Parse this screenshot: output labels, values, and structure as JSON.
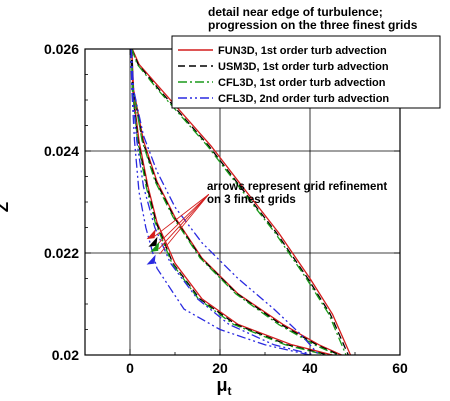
{
  "chart_data": {
    "type": "line",
    "title_lines": [
      "detail near edge of turbulence;",
      "progression on the three finest grids"
    ],
    "xlabel": "μ",
    "xlabel_sub": "t",
    "ylabel": "Z",
    "xlim": [
      -10,
      60
    ],
    "ylim": [
      0.02,
      0.026
    ],
    "x_ticks": [
      "0",
      "20",
      "40",
      "60"
    ],
    "y_ticks": [
      "0.02",
      "0.022",
      "0.024",
      "0.026"
    ],
    "grid": true,
    "legend_position": "top-right",
    "colors": {
      "fun3d": "#d41d1d",
      "usm3d": "#000000",
      "cfl3d_1st": "#1a9a1a",
      "cfl3d_2nd": "#2a2ae0",
      "axis": "#000000",
      "grid": "#000000"
    },
    "series": [
      {
        "name": "FUN3D, 1st order turb advection",
        "style": "solid",
        "color_key": "fun3d",
        "curves": [
          [
            [
              0.4,
              0.026
            ],
            [
              0.6,
              0.0252
            ],
            [
              2.0,
              0.0242
            ],
            [
              4.0,
              0.0233
            ],
            [
              6.0,
              0.0226
            ],
            [
              10.0,
              0.0218
            ],
            [
              16.0,
              0.0211
            ],
            [
              24.0,
              0.0206
            ],
            [
              36.0,
              0.0202
            ],
            [
              45.0,
              0.02
            ]
          ],
          [
            [
              0.4,
              0.026
            ],
            [
              0.8,
              0.0252
            ],
            [
              3.0,
              0.0242
            ],
            [
              6.0,
              0.0234
            ],
            [
              10.0,
              0.0227
            ],
            [
              16.0,
              0.0219
            ],
            [
              24.0,
              0.0212
            ],
            [
              34.0,
              0.0206
            ],
            [
              42.0,
              0.0202
            ],
            [
              47.0,
              0.02
            ]
          ],
          [
            [
              0.5,
              0.026
            ],
            [
              2.0,
              0.0257
            ],
            [
              7.0,
              0.0252
            ],
            [
              12.0,
              0.0247
            ],
            [
              18.0,
              0.0241
            ],
            [
              25.0,
              0.0233
            ],
            [
              33.0,
              0.0224
            ],
            [
              40.0,
              0.0215
            ],
            [
              45.0,
              0.0208
            ],
            [
              49.0,
              0.02
            ]
          ]
        ]
      },
      {
        "name": "USM3D, 1st order turb advection",
        "style": "dashed",
        "color_key": "usm3d",
        "curves": [
          [
            [
              0.3,
              0.026
            ],
            [
              0.5,
              0.0252
            ],
            [
              1.8,
              0.0242
            ],
            [
              3.8,
              0.0233
            ],
            [
              5.8,
              0.0226
            ],
            [
              9.5,
              0.0218
            ],
            [
              15.5,
              0.0211
            ],
            [
              23.5,
              0.0206
            ],
            [
              35.0,
              0.0202
            ],
            [
              44.0,
              0.02
            ]
          ],
          [
            [
              0.4,
              0.026
            ],
            [
              0.7,
              0.0252
            ],
            [
              2.8,
              0.0242
            ],
            [
              5.8,
              0.0234
            ],
            [
              9.8,
              0.0227
            ],
            [
              15.8,
              0.0219
            ],
            [
              23.8,
              0.0212
            ],
            [
              33.5,
              0.0206
            ],
            [
              41.5,
              0.0202
            ],
            [
              46.5,
              0.02
            ]
          ],
          [
            [
              0.4,
              0.026
            ],
            [
              1.8,
              0.0257
            ],
            [
              6.5,
              0.0252
            ],
            [
              11.5,
              0.0247
            ],
            [
              17.5,
              0.0241
            ],
            [
              24.5,
              0.0233
            ],
            [
              32.5,
              0.0224
            ],
            [
              39.5,
              0.0215
            ],
            [
              44.5,
              0.0208
            ],
            [
              48.5,
              0.02
            ]
          ]
        ]
      },
      {
        "name": "CFL3D, 1st order turb advection",
        "style": "dashdot",
        "color_key": "cfl3d_1st",
        "curves": [
          [
            [
              0.3,
              0.026
            ],
            [
              0.5,
              0.0252
            ],
            [
              1.7,
              0.0242
            ],
            [
              3.6,
              0.0233
            ],
            [
              5.6,
              0.0226
            ],
            [
              9.3,
              0.0218
            ],
            [
              15.2,
              0.0211
            ],
            [
              23.0,
              0.0206
            ],
            [
              34.5,
              0.0202
            ],
            [
              43.5,
              0.02
            ]
          ],
          [
            [
              0.3,
              0.026
            ],
            [
              0.7,
              0.0252
            ],
            [
              2.7,
              0.0242
            ],
            [
              5.6,
              0.0234
            ],
            [
              9.6,
              0.0227
            ],
            [
              15.6,
              0.0219
            ],
            [
              23.5,
              0.0212
            ],
            [
              33.0,
              0.0206
            ],
            [
              41.0,
              0.0202
            ],
            [
              46.0,
              0.02
            ]
          ],
          [
            [
              0.4,
              0.026
            ],
            [
              1.6,
              0.0257
            ],
            [
              6.2,
              0.0252
            ],
            [
              11.2,
              0.0247
            ],
            [
              17.2,
              0.0241
            ],
            [
              24.2,
              0.0233
            ],
            [
              32.2,
              0.0224
            ],
            [
              39.2,
              0.0215
            ],
            [
              44.2,
              0.0208
            ],
            [
              48.0,
              0.02
            ]
          ]
        ]
      },
      {
        "name": "CFL3D, 2nd order turb advection",
        "style": "dashdotdot",
        "color_key": "cfl3d_2nd",
        "curves": [
          [
            [
              0.2,
              0.026
            ],
            [
              0.4,
              0.0252
            ],
            [
              1.0,
              0.0242
            ],
            [
              2.0,
              0.0232
            ],
            [
              3.5,
              0.0225
            ],
            [
              6.0,
              0.0217
            ],
            [
              12.0,
              0.0209
            ],
            [
              20.0,
              0.0205
            ],
            [
              30.0,
              0.0202
            ],
            [
              40.0,
              0.02
            ]
          ],
          [
            [
              0.2,
              0.026
            ],
            [
              0.5,
              0.0252
            ],
            [
              1.5,
              0.0242
            ],
            [
              3.0,
              0.0233
            ],
            [
              5.5,
              0.0225
            ],
            [
              9.0,
              0.0218
            ],
            [
              15.0,
              0.0211
            ],
            [
              22.0,
              0.0206
            ],
            [
              32.0,
              0.0202
            ],
            [
              41.0,
              0.02
            ]
          ],
          [
            [
              0.3,
              0.026
            ],
            [
              0.8,
              0.0252
            ],
            [
              3.0,
              0.0243
            ],
            [
              6.0,
              0.0236
            ],
            [
              10.0,
              0.0229
            ],
            [
              16.0,
              0.0222
            ],
            [
              24.0,
              0.0215
            ],
            [
              32.0,
              0.0209
            ],
            [
              38.0,
              0.0204
            ],
            [
              42.0,
              0.02
            ]
          ]
        ]
      }
    ],
    "annotation": {
      "lines": [
        "arrows represent grid refinement",
        "on 3 finest grids"
      ],
      "anchor": [
        17.5,
        0.02315
      ],
      "targets": [
        [
          5.5,
          0.02233
        ],
        [
          6.2,
          0.02218
        ],
        [
          6.4,
          0.02208
        ],
        [
          6.6,
          0.02198
        ]
      ],
      "arrows": [
        {
          "color_key": "fun3d",
          "x": 4.8,
          "y": 0.02235
        },
        {
          "color_key": "usm3d",
          "x": 5.2,
          "y": 0.0222
        },
        {
          "color_key": "cfl3d_1st",
          "x": 5.6,
          "y": 0.0221
        },
        {
          "color_key": "cfl3d_2nd",
          "x": 4.8,
          "y": 0.02185
        }
      ]
    }
  }
}
